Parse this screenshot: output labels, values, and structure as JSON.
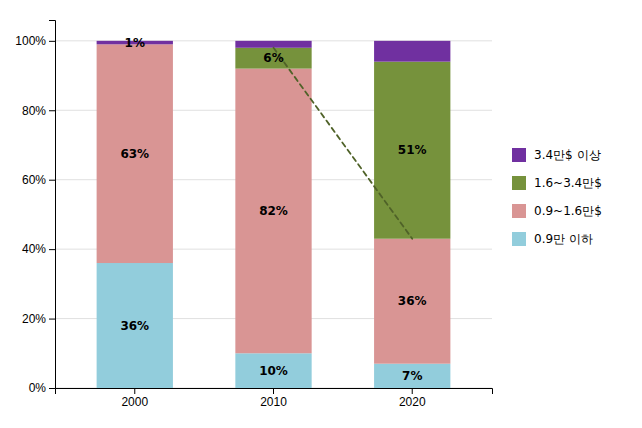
{
  "chart_data": {
    "type": "bar",
    "stacked": true,
    "categories": [
      "2000",
      "2010",
      "2020"
    ],
    "series": [
      {
        "name": "0.9만 이하",
        "color": "#92CDDC",
        "values": [
          36,
          10,
          7
        ],
        "value_labels": [
          "36%",
          "10%",
          "7%"
        ]
      },
      {
        "name": "0.9~1.6만$",
        "color": "#D99594",
        "values": [
          63,
          82,
          36
        ],
        "value_labels": [
          "63%",
          "82%",
          "36%"
        ]
      },
      {
        "name": "1.6~3.4만$",
        "color": "#76923C",
        "values": [
          0,
          6,
          51
        ],
        "value_labels": [
          null,
          "6%",
          "51%"
        ]
      },
      {
        "name": "3.4만$ 이상",
        "color": "#7030A0",
        "values": [
          1,
          2,
          6
        ],
        "value_labels": [
          "1%",
          null,
          null
        ]
      }
    ],
    "data_labels": true,
    "reference_lines": [
      {
        "x": [
          "2010",
          "2020"
        ],
        "values": [
          98,
          43
        ],
        "color": "#4F6228",
        "line_style": "dashed"
      }
    ],
    "ylim": [
      0,
      106
    ],
    "yticks": [
      {
        "value": 0,
        "label": "0%"
      },
      {
        "value": 20,
        "label": "20%"
      },
      {
        "value": 40,
        "label": "40%"
      },
      {
        "value": 60,
        "label": "60%"
      },
      {
        "value": 80,
        "label": "80%"
      },
      {
        "value": 100,
        "label": "100%"
      }
    ],
    "grid": true,
    "legend": "right"
  }
}
